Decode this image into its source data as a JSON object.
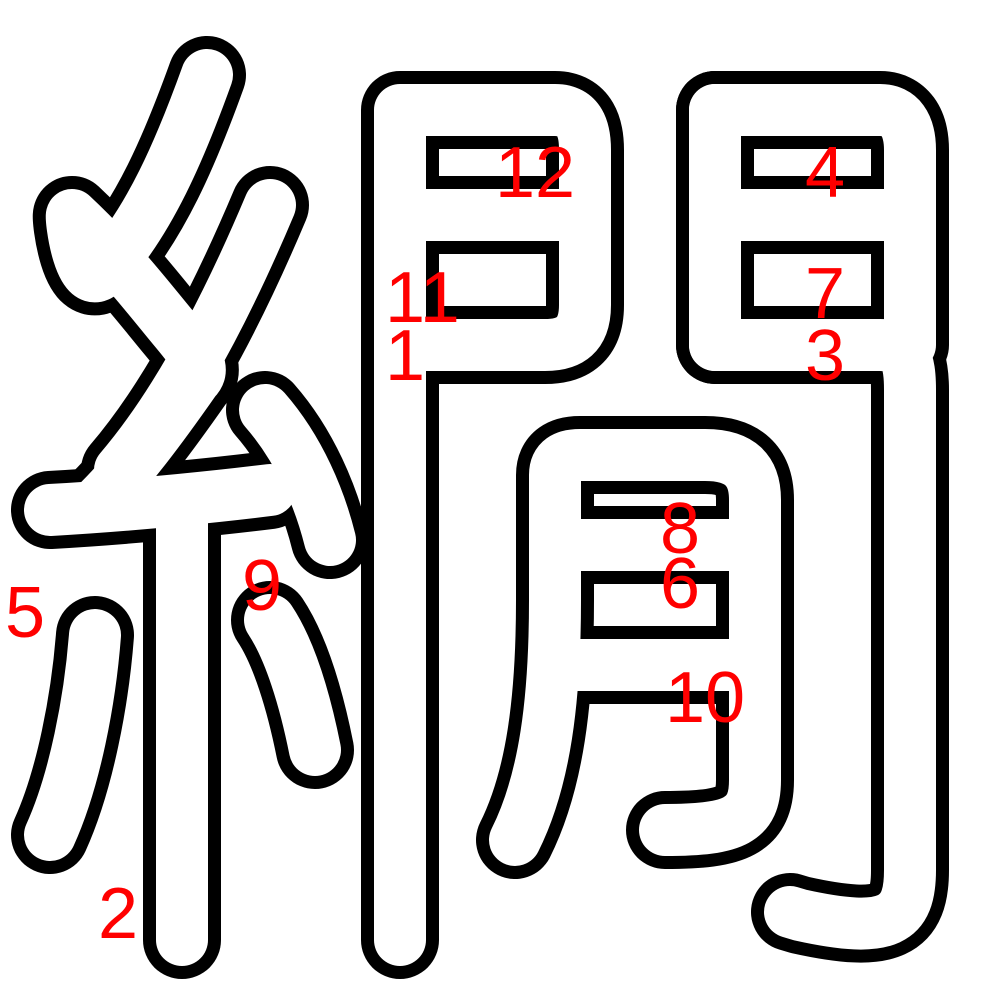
{
  "character": "",
  "stroke_numbers": [
    "1",
    "2",
    "3",
    "4",
    "5",
    "6",
    "7",
    "8",
    "9",
    "10",
    "11",
    "12"
  ],
  "colors": {
    "outline": "#000000",
    "fill": "#ffffff",
    "stroke_numbers": "#ff0000",
    "background": "#ffffff"
  }
}
